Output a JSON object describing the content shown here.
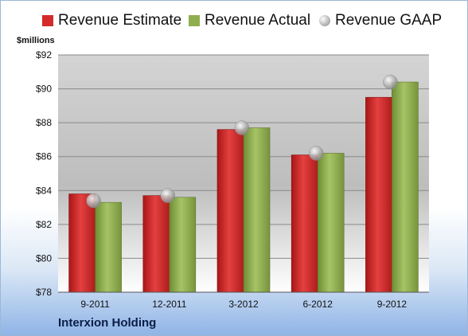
{
  "legend": {
    "estimate": "Revenue Estimate",
    "actual": "Revenue Actual",
    "gaap": "Revenue GAAP"
  },
  "unit_label": "$millions",
  "company": "Interxion Holding",
  "colors": {
    "estimate": "#d42a2a",
    "actual": "#8fae4e",
    "gaap": "#b0b0b0"
  },
  "chart_data": {
    "type": "bar",
    "title": "",
    "xlabel": "",
    "ylabel": "$millions",
    "ylim": [
      78,
      92
    ],
    "yticks": [
      "$78",
      "$80",
      "$82",
      "$84",
      "$86",
      "$88",
      "$90",
      "$92"
    ],
    "yticks_values": [
      78,
      80,
      82,
      84,
      86,
      88,
      90,
      92
    ],
    "categories": [
      "9-2011",
      "12-2011",
      "3-2012",
      "6-2012",
      "9-2012"
    ],
    "series": [
      {
        "name": "Revenue Estimate",
        "values": [
          83.8,
          83.7,
          87.6,
          86.1,
          89.5
        ]
      },
      {
        "name": "Revenue Actual",
        "values": [
          83.3,
          83.6,
          87.7,
          86.2,
          90.4
        ]
      },
      {
        "name": "Revenue GAAP",
        "values": [
          83.4,
          83.7,
          87.7,
          86.2,
          90.4
        ],
        "marker": "circle"
      }
    ],
    "grid": true,
    "legend_position": "top"
  }
}
